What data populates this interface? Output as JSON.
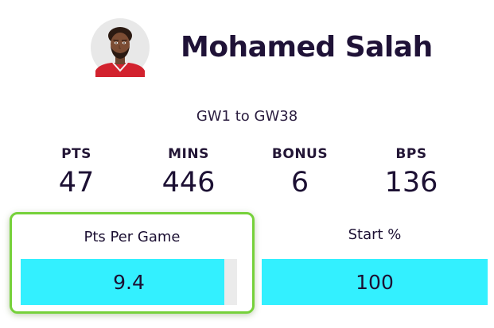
{
  "player": {
    "name": "Mohamed Salah",
    "avatar_icon": "player-avatar"
  },
  "range": "GW1 to GW38",
  "stats": [
    {
      "label": "PTS",
      "value": "47"
    },
    {
      "label": "MINS",
      "value": "446"
    },
    {
      "label": "BONUS",
      "value": "6"
    },
    {
      "label": "BPS",
      "value": "136"
    }
  ],
  "metrics": {
    "pts_per_game": {
      "label": "Pts Per Game",
      "value": "9.4",
      "bar_fill_percent": 94
    },
    "start_pct": {
      "label": "Start %",
      "value": "100",
      "bar_fill_percent": 100
    }
  },
  "colors": {
    "bar_fill": "#33f0ff",
    "bar_track": "#ebebeb",
    "highlight_border": "#76d13a",
    "text": "#1c1033"
  }
}
